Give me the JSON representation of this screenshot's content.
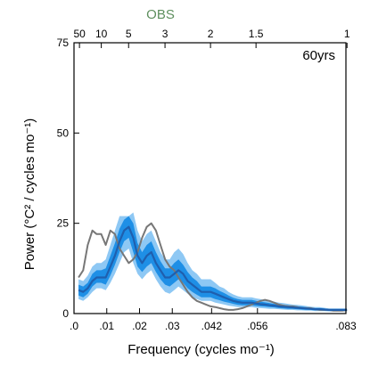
{
  "chart_data": {
    "type": "line",
    "annotation": "60yrs",
    "xlabel": "Frequency (cycles mo⁻¹)",
    "ylabel": "Power (°C² / cycles mo⁻¹)",
    "top_axis_label": "OBS",
    "xlim": [
      0,
      0.083
    ],
    "ylim": [
      0,
      75
    ],
    "x_ticks": [
      {
        "value": 0,
        "label": ".0"
      },
      {
        "value": 0.01,
        "label": ".01"
      },
      {
        "value": 0.02,
        "label": ".02"
      },
      {
        "value": 0.03,
        "label": ".03"
      },
      {
        "value": 0.042,
        "label": ".042"
      },
      {
        "value": 0.056,
        "label": ".056"
      },
      {
        "value": 0.083,
        "label": ".083"
      }
    ],
    "y_ticks": [
      {
        "value": 0,
        "label": "0"
      },
      {
        "value": 25,
        "label": "25"
      },
      {
        "value": 50,
        "label": "50"
      },
      {
        "value": 75,
        "label": "75"
      }
    ],
    "top_ticks": [
      {
        "value": 0.001667,
        "label": "50"
      },
      {
        "value": 0.008333,
        "label": "10"
      },
      {
        "value": 0.016667,
        "label": "5"
      },
      {
        "value": 0.027778,
        "label": "3"
      },
      {
        "value": 0.041667,
        "label": "2"
      },
      {
        "value": 0.055556,
        "label": "1.5"
      },
      {
        "value": 0.083333,
        "label": "1"
      }
    ],
    "colors": {
      "obs": "#777777",
      "mean": "#1f5fae",
      "inner_band": "#1e8fe6",
      "outer_band": "#8ec8f4",
      "obs_label": "#5e8f5e"
    },
    "series": [
      {
        "name": "OBS",
        "x": [
          0.0014,
          0.0028,
          0.0042,
          0.0056,
          0.0069,
          0.0083,
          0.0097,
          0.0111,
          0.0125,
          0.0139,
          0.0153,
          0.0167,
          0.0181,
          0.0194,
          0.0208,
          0.0222,
          0.0236,
          0.025,
          0.0264,
          0.0278,
          0.0292,
          0.0306,
          0.0319,
          0.0333,
          0.0347,
          0.0361,
          0.0375,
          0.0389,
          0.0403,
          0.0417,
          0.0431,
          0.0444,
          0.0458,
          0.0472,
          0.0486,
          0.05,
          0.0514,
          0.0528,
          0.0542,
          0.0556,
          0.0569,
          0.0583,
          0.0597,
          0.0611,
          0.0625,
          0.0639,
          0.0653,
          0.0667,
          0.0681,
          0.0694,
          0.0708,
          0.0722,
          0.0736,
          0.075,
          0.0764,
          0.0778,
          0.0792,
          0.0806,
          0.0819,
          0.0833
        ],
        "values": [
          10,
          12,
          19,
          23,
          22,
          22,
          19,
          23,
          22,
          18,
          16,
          14,
          15,
          17,
          21,
          24,
          25,
          23,
          19,
          15,
          13,
          12,
          10,
          8,
          6,
          4.5,
          3.5,
          3,
          2.5,
          2,
          1.8,
          1.5,
          1.2,
          1,
          1,
          1.2,
          1.5,
          2,
          2.5,
          3,
          3.5,
          3.8,
          3.5,
          3,
          2.5,
          2.2,
          2,
          2,
          1.8,
          1.5,
          1.5,
          1.5,
          1.2,
          1,
          1,
          1,
          0.8,
          0.8,
          0.8,
          1
        ]
      },
      {
        "name": "mean",
        "x": [
          0.0014,
          0.0028,
          0.0042,
          0.0056,
          0.0069,
          0.0083,
          0.0097,
          0.0111,
          0.0125,
          0.0139,
          0.0153,
          0.0167,
          0.0181,
          0.0194,
          0.0208,
          0.0222,
          0.0236,
          0.025,
          0.0264,
          0.0278,
          0.0292,
          0.0306,
          0.0319,
          0.0333,
          0.0347,
          0.0361,
          0.0375,
          0.0389,
          0.0403,
          0.0417,
          0.0431,
          0.0444,
          0.0458,
          0.0472,
          0.0486,
          0.05,
          0.0514,
          0.0528,
          0.0542,
          0.0556,
          0.0569,
          0.0583,
          0.0597,
          0.0611,
          0.0625,
          0.0639,
          0.0653,
          0.0667,
          0.0681,
          0.0694,
          0.0708,
          0.0722,
          0.0736,
          0.075,
          0.0764,
          0.0778,
          0.0792,
          0.0806,
          0.0819,
          0.0833
        ],
        "values": [
          6.5,
          6,
          7,
          9,
          10,
          10,
          10,
          13,
          16,
          20,
          23,
          24,
          21,
          16,
          14,
          16,
          17,
          14,
          12,
          10,
          10,
          11,
          12,
          11,
          9,
          8,
          7,
          6,
          6,
          6,
          5.5,
          5,
          4.5,
          4,
          3.5,
          3.2,
          3,
          3,
          3,
          2.8,
          2.6,
          2.5,
          2.3,
          2.2,
          2,
          1.9,
          1.8,
          1.7,
          1.6,
          1.5,
          1.4,
          1.3,
          1.2,
          1.2,
          1.1,
          1,
          1,
          1,
          1,
          1
        ]
      },
      {
        "name": "inner_lower",
        "values": [
          5,
          4.5,
          5.5,
          7.5,
          8.5,
          8.5,
          8,
          10.5,
          13.5,
          17,
          20,
          21,
          17,
          13,
          11.5,
          13,
          14,
          11.5,
          9.5,
          8,
          7.5,
          8.5,
          9.5,
          8.5,
          7,
          6,
          5.2,
          4.5,
          4.5,
          4.5,
          4,
          3.7,
          3.3,
          3,
          2.7,
          2.4,
          2.3,
          2.3,
          2.3,
          2.1,
          2,
          1.9,
          1.8,
          1.7,
          1.5,
          1.4,
          1.3,
          1.3,
          1.2,
          1.1,
          1,
          1,
          0.9,
          0.9,
          0.8,
          0.8,
          0.8,
          0.8,
          0.8,
          0.8
        ]
      },
      {
        "name": "inner_upper",
        "values": [
          8,
          7.5,
          8.5,
          11,
          12,
          12,
          12.5,
          16,
          19.5,
          23.5,
          26,
          27,
          25,
          19.5,
          17,
          19,
          20,
          17,
          14.5,
          12.5,
          12.5,
          14,
          15,
          13.5,
          11.5,
          10,
          9,
          7.5,
          7.5,
          7.5,
          7,
          6.3,
          5.7,
          5,
          4.4,
          4,
          3.8,
          3.8,
          3.8,
          3.5,
          3.3,
          3.1,
          2.9,
          2.7,
          2.5,
          2.4,
          2.3,
          2.1,
          2,
          1.9,
          1.8,
          1.6,
          1.5,
          1.5,
          1.4,
          1.2,
          1.2,
          1.2,
          1.2,
          1.2
        ]
      },
      {
        "name": "outer_lower",
        "values": [
          4,
          3.5,
          4.5,
          6,
          7,
          7,
          6.5,
          8.5,
          11,
          14,
          17,
          18,
          14,
          11,
          9.5,
          11,
          12,
          9.5,
          7.5,
          6,
          5.5,
          6.5,
          7.5,
          6.5,
          5.5,
          4.5,
          4,
          3.5,
          3.5,
          3.5,
          3,
          2.8,
          2.5,
          2.2,
          2,
          1.8,
          1.8,
          1.8,
          1.8,
          1.6,
          1.5,
          1.4,
          1.3,
          1.3,
          1.2,
          1.1,
          1,
          1,
          0.9,
          0.9,
          0.8,
          0.8,
          0.7,
          0.7,
          0.7,
          0.6,
          0.6,
          0.6,
          0.6,
          0.6
        ]
      },
      {
        "name": "outer_upper",
        "values": [
          9.5,
          9,
          10.5,
          13,
          14,
          14,
          15,
          19,
          23,
          27,
          27,
          27,
          28,
          23,
          20,
          22,
          23,
          20,
          17,
          15,
          15,
          17,
          18,
          16.5,
          14,
          12,
          11,
          9.5,
          9.5,
          9.5,
          8.5,
          7.5,
          7,
          6,
          5.3,
          4.8,
          4.5,
          4.5,
          4.5,
          4.2,
          4,
          3.7,
          3.5,
          3.3,
          3,
          2.9,
          2.7,
          2.5,
          2.4,
          2.3,
          2.1,
          1.9,
          1.8,
          1.8,
          1.6,
          1.4,
          1.4,
          1.4,
          1.4,
          1.4
        ]
      }
    ]
  }
}
